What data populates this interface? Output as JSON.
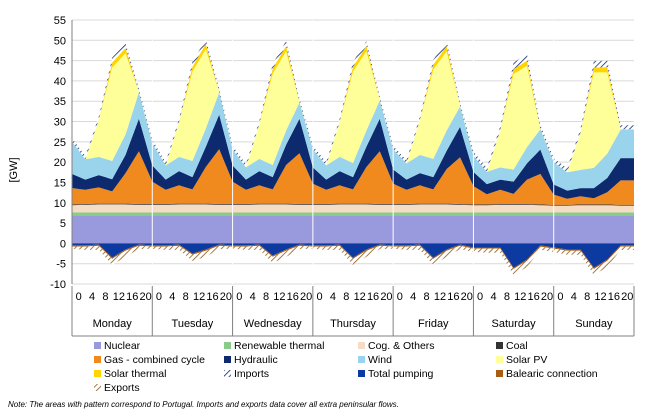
{
  "chart_data": {
    "type": "area",
    "title": "",
    "ylabel": "[GW]",
    "ylim": [
      -10,
      55
    ],
    "yticks": [
      -10,
      -5,
      0,
      5,
      10,
      15,
      20,
      25,
      30,
      35,
      40,
      45,
      50,
      55
    ],
    "hour_ticks": [
      "0",
      "4",
      "8",
      "12",
      "16",
      "20"
    ],
    "days": [
      "Monday",
      "Tuesday",
      "Wednesday",
      "Thursday",
      "Friday",
      "Saturday",
      "Sunday"
    ],
    "hours_per_day": 24,
    "stacking": "positive components stacked upward from 0; Total pumping, Balearic connection and Exports stacked downward from 0; values in GW, hourly",
    "series": [
      {
        "name": "Nuclear",
        "color": "#9999dd",
        "pattern": "solid",
        "day_profiles": [
          [
            6.9,
            6.9,
            6.9,
            6.9,
            6.9,
            6.9
          ],
          [
            6.9,
            6.9,
            6.9,
            6.9,
            6.9,
            6.9
          ],
          [
            6.9,
            6.9,
            6.9,
            6.9,
            6.9,
            6.9
          ],
          [
            6.9,
            6.9,
            6.9,
            6.9,
            6.9,
            6.9
          ],
          [
            6.9,
            6.9,
            6.9,
            6.9,
            6.9,
            6.9
          ],
          [
            6.9,
            6.9,
            6.9,
            6.9,
            6.9,
            6.9
          ],
          [
            6.9,
            6.9,
            6.9,
            6.9,
            6.9,
            6.9
          ]
        ]
      },
      {
        "name": "Renewable thermal",
        "color": "#88cc88",
        "pattern": "solid",
        "day_profiles": [
          [
            0.7,
            0.7,
            0.7,
            0.7,
            0.7,
            0.7
          ],
          [
            0.7,
            0.7,
            0.7,
            0.7,
            0.7,
            0.7
          ],
          [
            0.7,
            0.7,
            0.7,
            0.7,
            0.7,
            0.7
          ],
          [
            0.7,
            0.7,
            0.7,
            0.7,
            0.7,
            0.7
          ],
          [
            0.7,
            0.7,
            0.7,
            0.7,
            0.7,
            0.7
          ],
          [
            0.7,
            0.7,
            0.7,
            0.7,
            0.7,
            0.7
          ],
          [
            0.7,
            0.7,
            0.7,
            0.7,
            0.7,
            0.7
          ]
        ]
      },
      {
        "name": "Cog. & Others",
        "color": "#f5dcc4",
        "pattern": "solid",
        "day_profiles": [
          [
            1.8,
            1.9,
            2.0,
            2.0,
            2.0,
            1.9
          ],
          [
            1.9,
            1.9,
            2.0,
            2.0,
            2.0,
            1.9
          ],
          [
            1.9,
            1.9,
            2.0,
            2.0,
            2.0,
            1.9
          ],
          [
            1.9,
            1.9,
            2.0,
            2.0,
            2.0,
            1.9
          ],
          [
            1.9,
            1.9,
            2.0,
            2.0,
            2.0,
            1.9
          ],
          [
            1.8,
            1.8,
            1.9,
            1.9,
            1.9,
            1.8
          ],
          [
            1.7,
            1.7,
            1.8,
            1.8,
            1.8,
            1.7
          ]
        ]
      },
      {
        "name": "Coal",
        "color": "#333333",
        "pattern": "solid",
        "day_profiles": [
          [
            0.2,
            0.2,
            0.2,
            0.2,
            0.2,
            0.2
          ],
          [
            0.2,
            0.2,
            0.2,
            0.2,
            0.2,
            0.2
          ],
          [
            0.2,
            0.2,
            0.2,
            0.2,
            0.2,
            0.2
          ],
          [
            0.2,
            0.2,
            0.2,
            0.2,
            0.2,
            0.2
          ],
          [
            0.2,
            0.2,
            0.2,
            0.2,
            0.2,
            0.2
          ],
          [
            0.2,
            0.2,
            0.2,
            0.2,
            0.2,
            0.2
          ],
          [
            0.2,
            0.2,
            0.2,
            0.2,
            0.2,
            0.2
          ]
        ]
      },
      {
        "name": "Gas - combined cycle",
        "color": "#f08a1e",
        "pattern": "solid",
        "day_profiles": [
          [
            4.0,
            3.5,
            4.0,
            3.0,
            7.5,
            13.0
          ],
          [
            5.5,
            3.5,
            4.5,
            3.5,
            9.0,
            13.5
          ],
          [
            5.5,
            3.5,
            4.5,
            3.5,
            9.5,
            12.5
          ],
          [
            5.0,
            3.5,
            4.5,
            3.5,
            9.0,
            13.0
          ],
          [
            5.0,
            3.5,
            4.5,
            3.5,
            8.5,
            11.5
          ],
          [
            4.5,
            2.5,
            3.5,
            2.5,
            6.0,
            7.5
          ],
          [
            2.5,
            1.5,
            2.0,
            1.5,
            3.0,
            6.0
          ]
        ]
      },
      {
        "name": "Hydraulic",
        "color": "#0d2a6e",
        "pattern": "solid",
        "day_profiles": [
          [
            3.5,
            2.5,
            3.0,
            3.0,
            4.5,
            8.0
          ],
          [
            4.0,
            2.5,
            3.5,
            3.0,
            5.0,
            8.5
          ],
          [
            4.0,
            2.5,
            3.5,
            3.0,
            5.0,
            8.5
          ],
          [
            4.0,
            2.5,
            3.5,
            3.0,
            5.0,
            8.0
          ],
          [
            3.5,
            2.5,
            3.0,
            3.0,
            4.5,
            7.5
          ],
          [
            3.5,
            2.5,
            2.5,
            3.0,
            4.0,
            6.0
          ],
          [
            2.5,
            2.0,
            2.0,
            2.5,
            3.5,
            5.5
          ]
        ]
      },
      {
        "name": "Wind",
        "color": "#9ad4ec",
        "pattern": "solid",
        "day_profiles": [
          [
            8.0,
            5.0,
            4.5,
            4.5,
            5.0,
            6.5
          ],
          [
            5.5,
            3.5,
            3.5,
            4.0,
            4.5,
            5.5
          ],
          [
            4.0,
            3.0,
            3.0,
            3.0,
            3.5,
            4.0
          ],
          [
            4.5,
            3.5,
            3.5,
            3.5,
            4.0,
            4.5
          ],
          [
            5.0,
            4.0,
            4.5,
            4.5,
            5.0,
            5.0
          ],
          [
            4.0,
            3.0,
            3.0,
            3.0,
            4.0,
            5.0
          ],
          [
            5.5,
            4.5,
            4.5,
            5.0,
            6.0,
            7.0
          ]
        ]
      },
      {
        "name": "Solar PV",
        "color": "#ffff99",
        "pattern": "solid",
        "day_profiles": [
          [
            0,
            0,
            9.0,
            23.0,
            20.0,
            0
          ],
          [
            0,
            0,
            8.5,
            22.0,
            19.5,
            0
          ],
          [
            0,
            0,
            8.5,
            22.5,
            19.5,
            0
          ],
          [
            0,
            0,
            8.5,
            22.5,
            19.5,
            0
          ],
          [
            0,
            0,
            8.5,
            22.0,
            19.5,
            0
          ],
          [
            0,
            0,
            9.0,
            23.5,
            20.0,
            0
          ],
          [
            0,
            0,
            9.0,
            23.5,
            20.0,
            0
          ]
        ]
      },
      {
        "name": "Solar thermal",
        "color": "#ffd400",
        "pattern": "solid",
        "day_profiles": [
          [
            0,
            0,
            0.1,
            1.2,
            1.3,
            0.1
          ],
          [
            0,
            0,
            0.1,
            1.2,
            1.3,
            0.1
          ],
          [
            0,
            0,
            0.1,
            1.2,
            1.3,
            0.1
          ],
          [
            0,
            0,
            0.1,
            1.2,
            1.3,
            0.1
          ],
          [
            0,
            0,
            0.1,
            1.2,
            1.3,
            0.1
          ],
          [
            0,
            0,
            0.1,
            1.2,
            1.3,
            0.1
          ],
          [
            0,
            0,
            0.1,
            1.2,
            1.3,
            0.1
          ]
        ]
      },
      {
        "name": "Imports",
        "color": "#ffffff",
        "pattern": "hatch",
        "day_profiles": [
          [
            0.8,
            0.8,
            0.8,
            1.2,
            1.2,
            0.8
          ],
          [
            0.8,
            0.8,
            0.8,
            1.2,
            1.2,
            0.8
          ],
          [
            0.8,
            0.8,
            0.8,
            1.2,
            1.2,
            0.8
          ],
          [
            0.8,
            0.8,
            0.8,
            1.2,
            1.2,
            0.8
          ],
          [
            0.8,
            0.8,
            0.8,
            1.2,
            1.2,
            0.8
          ],
          [
            1.0,
            1.0,
            1.0,
            1.6,
            1.6,
            1.0
          ],
          [
            1.0,
            1.0,
            1.0,
            1.6,
            1.6,
            1.0
          ]
        ]
      },
      {
        "name": "Total pumping",
        "color": "#0d3aa0",
        "pattern": "solid",
        "day_profiles": [
          [
            -0.5,
            -0.5,
            -0.3,
            -3.5,
            -1.5,
            -0.3
          ],
          [
            -0.5,
            -0.5,
            -0.3,
            -2.5,
            -1.5,
            -0.3
          ],
          [
            -0.5,
            -0.5,
            -0.3,
            -3.0,
            -1.5,
            -0.3
          ],
          [
            -0.5,
            -0.5,
            -0.3,
            -3.5,
            -1.5,
            -0.3
          ],
          [
            -0.5,
            -0.5,
            -0.3,
            -3.5,
            -1.5,
            -0.3
          ],
          [
            -1.0,
            -1.0,
            -1.0,
            -6.0,
            -4.0,
            -0.5
          ],
          [
            -1.0,
            -1.5,
            -1.5,
            -6.0,
            -4.0,
            -0.5
          ]
        ]
      },
      {
        "name": "Balearic connection",
        "color": "#a85d14",
        "pattern": "solid",
        "day_profiles": [
          [
            -0.3,
            -0.3,
            -0.3,
            -0.3,
            -0.3,
            -0.3
          ],
          [
            -0.3,
            -0.3,
            -0.3,
            -0.3,
            -0.3,
            -0.3
          ],
          [
            -0.3,
            -0.3,
            -0.3,
            -0.3,
            -0.3,
            -0.3
          ],
          [
            -0.3,
            -0.3,
            -0.3,
            -0.3,
            -0.3,
            -0.3
          ],
          [
            -0.3,
            -0.3,
            -0.3,
            -0.3,
            -0.3,
            -0.3
          ],
          [
            -0.3,
            -0.3,
            -0.3,
            -0.3,
            -0.3,
            -0.3
          ],
          [
            -0.3,
            -0.3,
            -0.3,
            -0.3,
            -0.3,
            -0.3
          ]
        ]
      },
      {
        "name": "Exports",
        "color": "#c07820",
        "pattern": "hatch",
        "day_profiles": [
          [
            -0.5,
            -0.8,
            -1.0,
            -1.5,
            -1.5,
            -0.8
          ],
          [
            -0.5,
            -0.8,
            -1.0,
            -1.5,
            -1.5,
            -0.8
          ],
          [
            -0.5,
            -0.8,
            -1.0,
            -1.5,
            -1.5,
            -0.8
          ],
          [
            -0.5,
            -0.8,
            -1.0,
            -1.5,
            -1.5,
            -0.8
          ],
          [
            -0.5,
            -0.8,
            -1.0,
            -1.5,
            -1.5,
            -0.8
          ],
          [
            -0.8,
            -1.0,
            -1.0,
            -1.5,
            -1.5,
            -0.8
          ],
          [
            -0.8,
            -1.0,
            -1.0,
            -1.5,
            -1.5,
            -0.8
          ]
        ]
      }
    ],
    "profile_hours": [
      0,
      4,
      8,
      12,
      16,
      20
    ],
    "grid": true,
    "legend_position": "bottom"
  },
  "legend": [
    {
      "label": "Nuclear",
      "color": "#9999dd",
      "pattern": "solid"
    },
    {
      "label": "Renewable thermal",
      "color": "#88cc88",
      "pattern": "solid"
    },
    {
      "label": "Cog. & Others",
      "color": "#f5dcc4",
      "pattern": "solid"
    },
    {
      "label": "Coal",
      "color": "#333333",
      "pattern": "solid"
    },
    {
      "label": "Gas - combined cycle",
      "color": "#f08a1e",
      "pattern": "solid"
    },
    {
      "label": "Hydraulic",
      "color": "#0d2a6e",
      "pattern": "solid"
    },
    {
      "label": "Wind",
      "color": "#9ad4ec",
      "pattern": "solid"
    },
    {
      "label": "Solar PV",
      "color": "#ffff99",
      "pattern": "solid"
    },
    {
      "label": "Solar thermal",
      "color": "#ffd400",
      "pattern": "solid"
    },
    {
      "label": "Imports",
      "color": "#ffffff",
      "pattern": "hatch"
    },
    {
      "label": "Total pumping",
      "color": "#0d3aa0",
      "pattern": "solid"
    },
    {
      "label": "Balearic connection",
      "color": "#a85d14",
      "pattern": "solid"
    },
    {
      "label": "Exports",
      "color": "#c07820",
      "pattern": "hatch"
    }
  ],
  "note": "Note: The areas with pattern correspond to Portugal. Imports and exports data cover all extra peninsular flows."
}
